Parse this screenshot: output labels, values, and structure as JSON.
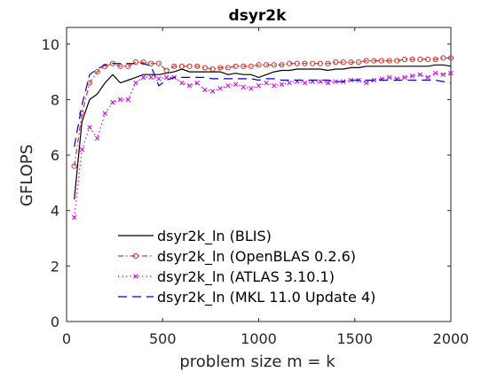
{
  "chart_data": {
    "type": "line",
    "title": "dsyr2k",
    "xlabel": "problem size m = k",
    "ylabel": "GFLOPS",
    "xlim": [
      0,
      2000
    ],
    "ylim": [
      0,
      10.6
    ],
    "xticks": [
      0,
      500,
      1000,
      1500,
      2000
    ],
    "yticks": [
      0,
      2,
      4,
      6,
      8,
      10
    ],
    "grid": false,
    "legend_position": "lower-center",
    "x": [
      40,
      80,
      120,
      160,
      200,
      240,
      280,
      320,
      360,
      400,
      440,
      480,
      520,
      560,
      600,
      640,
      680,
      720,
      760,
      800,
      840,
      880,
      920,
      960,
      1000,
      1040,
      1080,
      1120,
      1160,
      1200,
      1240,
      1280,
      1320,
      1360,
      1400,
      1440,
      1480,
      1520,
      1560,
      1600,
      1640,
      1680,
      1720,
      1760,
      1800,
      1840,
      1880,
      1920,
      1960,
      2000
    ],
    "series": [
      {
        "name": "dsyr2k_ln (BLIS)",
        "color": "#000000",
        "dash": "",
        "marker": "none",
        "values": [
          4.4,
          7.2,
          8.0,
          8.2,
          8.6,
          8.9,
          8.6,
          8.7,
          8.8,
          8.9,
          8.9,
          8.9,
          8.95,
          9.0,
          9.1,
          9.0,
          9.0,
          9.0,
          9.0,
          9.0,
          8.9,
          8.95,
          8.9,
          8.9,
          8.8,
          8.9,
          9.0,
          9.05,
          9.05,
          9.1,
          9.1,
          9.1,
          9.1,
          9.05,
          9.1,
          9.1,
          9.15,
          9.15,
          9.2,
          9.2,
          9.2,
          9.2,
          9.2,
          9.2,
          9.2,
          9.2,
          9.2,
          9.25,
          9.25,
          9.2
        ]
      },
      {
        "name": "dsyr2k_ln (OpenBLAS 0.2.6)",
        "color": "#d0342c",
        "dash": "6 3 1.5 3",
        "marker": "circle",
        "values": [
          5.6,
          7.5,
          8.6,
          9.0,
          9.2,
          9.3,
          9.2,
          9.2,
          9.35,
          9.35,
          9.3,
          9.3,
          9.05,
          9.2,
          9.2,
          9.2,
          9.2,
          9.15,
          9.1,
          9.15,
          9.15,
          9.2,
          9.2,
          9.2,
          9.25,
          9.25,
          9.25,
          9.25,
          9.3,
          9.3,
          9.3,
          9.3,
          9.3,
          9.3,
          9.35,
          9.35,
          9.35,
          9.35,
          9.4,
          9.4,
          9.4,
          9.4,
          9.4,
          9.45,
          9.45,
          9.45,
          9.45,
          9.45,
          9.5,
          9.5
        ]
      },
      {
        "name": "dsyr2k_ln (ATLAS 3.10.1)",
        "color": "#d400d4",
        "dash": "1.5 3",
        "marker": "x",
        "values": [
          3.75,
          6.2,
          7.0,
          6.6,
          7.5,
          7.9,
          8.0,
          8.0,
          8.6,
          8.8,
          8.8,
          8.75,
          8.8,
          8.8,
          8.6,
          8.5,
          8.6,
          8.35,
          8.3,
          8.4,
          8.5,
          8.55,
          8.45,
          8.4,
          8.5,
          8.6,
          8.5,
          8.55,
          8.6,
          8.65,
          8.6,
          8.65,
          8.65,
          8.6,
          8.65,
          8.65,
          8.7,
          8.7,
          8.6,
          8.7,
          8.75,
          8.8,
          8.75,
          8.8,
          8.85,
          8.9,
          8.8,
          8.95,
          8.9,
          8.95
        ]
      },
      {
        "name": "dsyr2k_ln (MKL 11.0 Update 4)",
        "color": "#0000cc",
        "dash": "10 6",
        "marker": "none",
        "values": [
          6.3,
          7.8,
          8.9,
          9.1,
          9.25,
          9.3,
          9.3,
          9.3,
          9.3,
          9.3,
          9.2,
          8.5,
          8.7,
          8.8,
          8.8,
          8.8,
          8.8,
          8.8,
          8.75,
          8.75,
          8.75,
          8.75,
          8.75,
          8.75,
          8.7,
          8.75,
          8.75,
          8.7,
          8.7,
          8.7,
          8.7,
          8.7,
          8.7,
          8.7,
          8.65,
          8.65,
          8.7,
          8.7,
          8.7,
          8.7,
          8.7,
          8.7,
          8.7,
          8.7,
          8.7,
          8.7,
          8.7,
          8.7,
          8.65,
          8.6
        ]
      }
    ]
  }
}
